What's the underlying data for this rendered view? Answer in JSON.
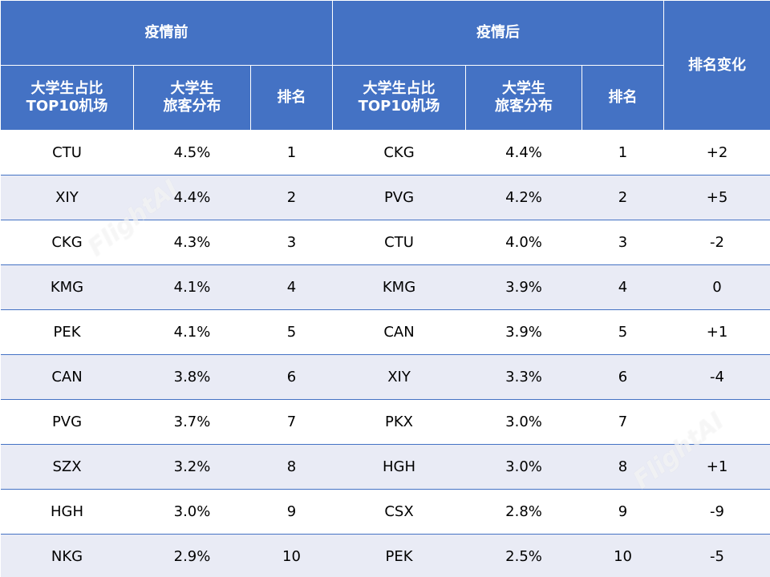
{
  "header": {
    "before_label": "疫情前",
    "after_label": "疫情后",
    "rank_change_label": "排名变化",
    "col_airport_line1": "大学生占比",
    "col_airport_line2": "TOP10机场",
    "col_share_line1": "大学生",
    "col_share_line2": "旅客分布",
    "col_rank": "排名"
  },
  "rows": [
    {
      "before_airport": "CTU",
      "before_share": "4.5%",
      "before_rank": "1",
      "after_airport": "CKG",
      "after_share": "4.4%",
      "after_rank": "1",
      "change": "+2"
    },
    {
      "before_airport": "XIY",
      "before_share": "4.4%",
      "before_rank": "2",
      "after_airport": "PVG",
      "after_share": "4.2%",
      "after_rank": "2",
      "change": "+5"
    },
    {
      "before_airport": "CKG",
      "before_share": "4.3%",
      "before_rank": "3",
      "after_airport": "CTU",
      "after_share": "4.0%",
      "after_rank": "3",
      "change": "-2"
    },
    {
      "before_airport": "KMG",
      "before_share": "4.1%",
      "before_rank": "4",
      "after_airport": "KMG",
      "after_share": "3.9%",
      "after_rank": "4",
      "change": "0"
    },
    {
      "before_airport": "PEK",
      "before_share": "4.1%",
      "before_rank": "5",
      "after_airport": "CAN",
      "after_share": "3.9%",
      "after_rank": "5",
      "change": "+1"
    },
    {
      "before_airport": "CAN",
      "before_share": "3.8%",
      "before_rank": "6",
      "after_airport": "XIY",
      "after_share": "3.3%",
      "after_rank": "6",
      "change": "-4"
    },
    {
      "before_airport": "PVG",
      "before_share": "3.7%",
      "before_rank": "7",
      "after_airport": "PKX",
      "after_share": "3.0%",
      "after_rank": "7",
      "change": ""
    },
    {
      "before_airport": "SZX",
      "before_share": "3.2%",
      "before_rank": "8",
      "after_airport": "HGH",
      "after_share": "3.0%",
      "after_rank": "8",
      "change": "+1"
    },
    {
      "before_airport": "HGH",
      "before_share": "3.0%",
      "before_rank": "9",
      "after_airport": "CSX",
      "after_share": "2.8%",
      "after_rank": "9",
      "change": "-9"
    },
    {
      "before_airport": "NKG",
      "before_share": "2.9%",
      "before_rank": "10",
      "after_airport": "PEK",
      "after_share": "2.5%",
      "after_rank": "10",
      "change": "-5"
    }
  ],
  "watermark": "FlightAI",
  "colors": {
    "header_bg": "#4472c4",
    "stripe_bg": "#e9ebf5"
  }
}
